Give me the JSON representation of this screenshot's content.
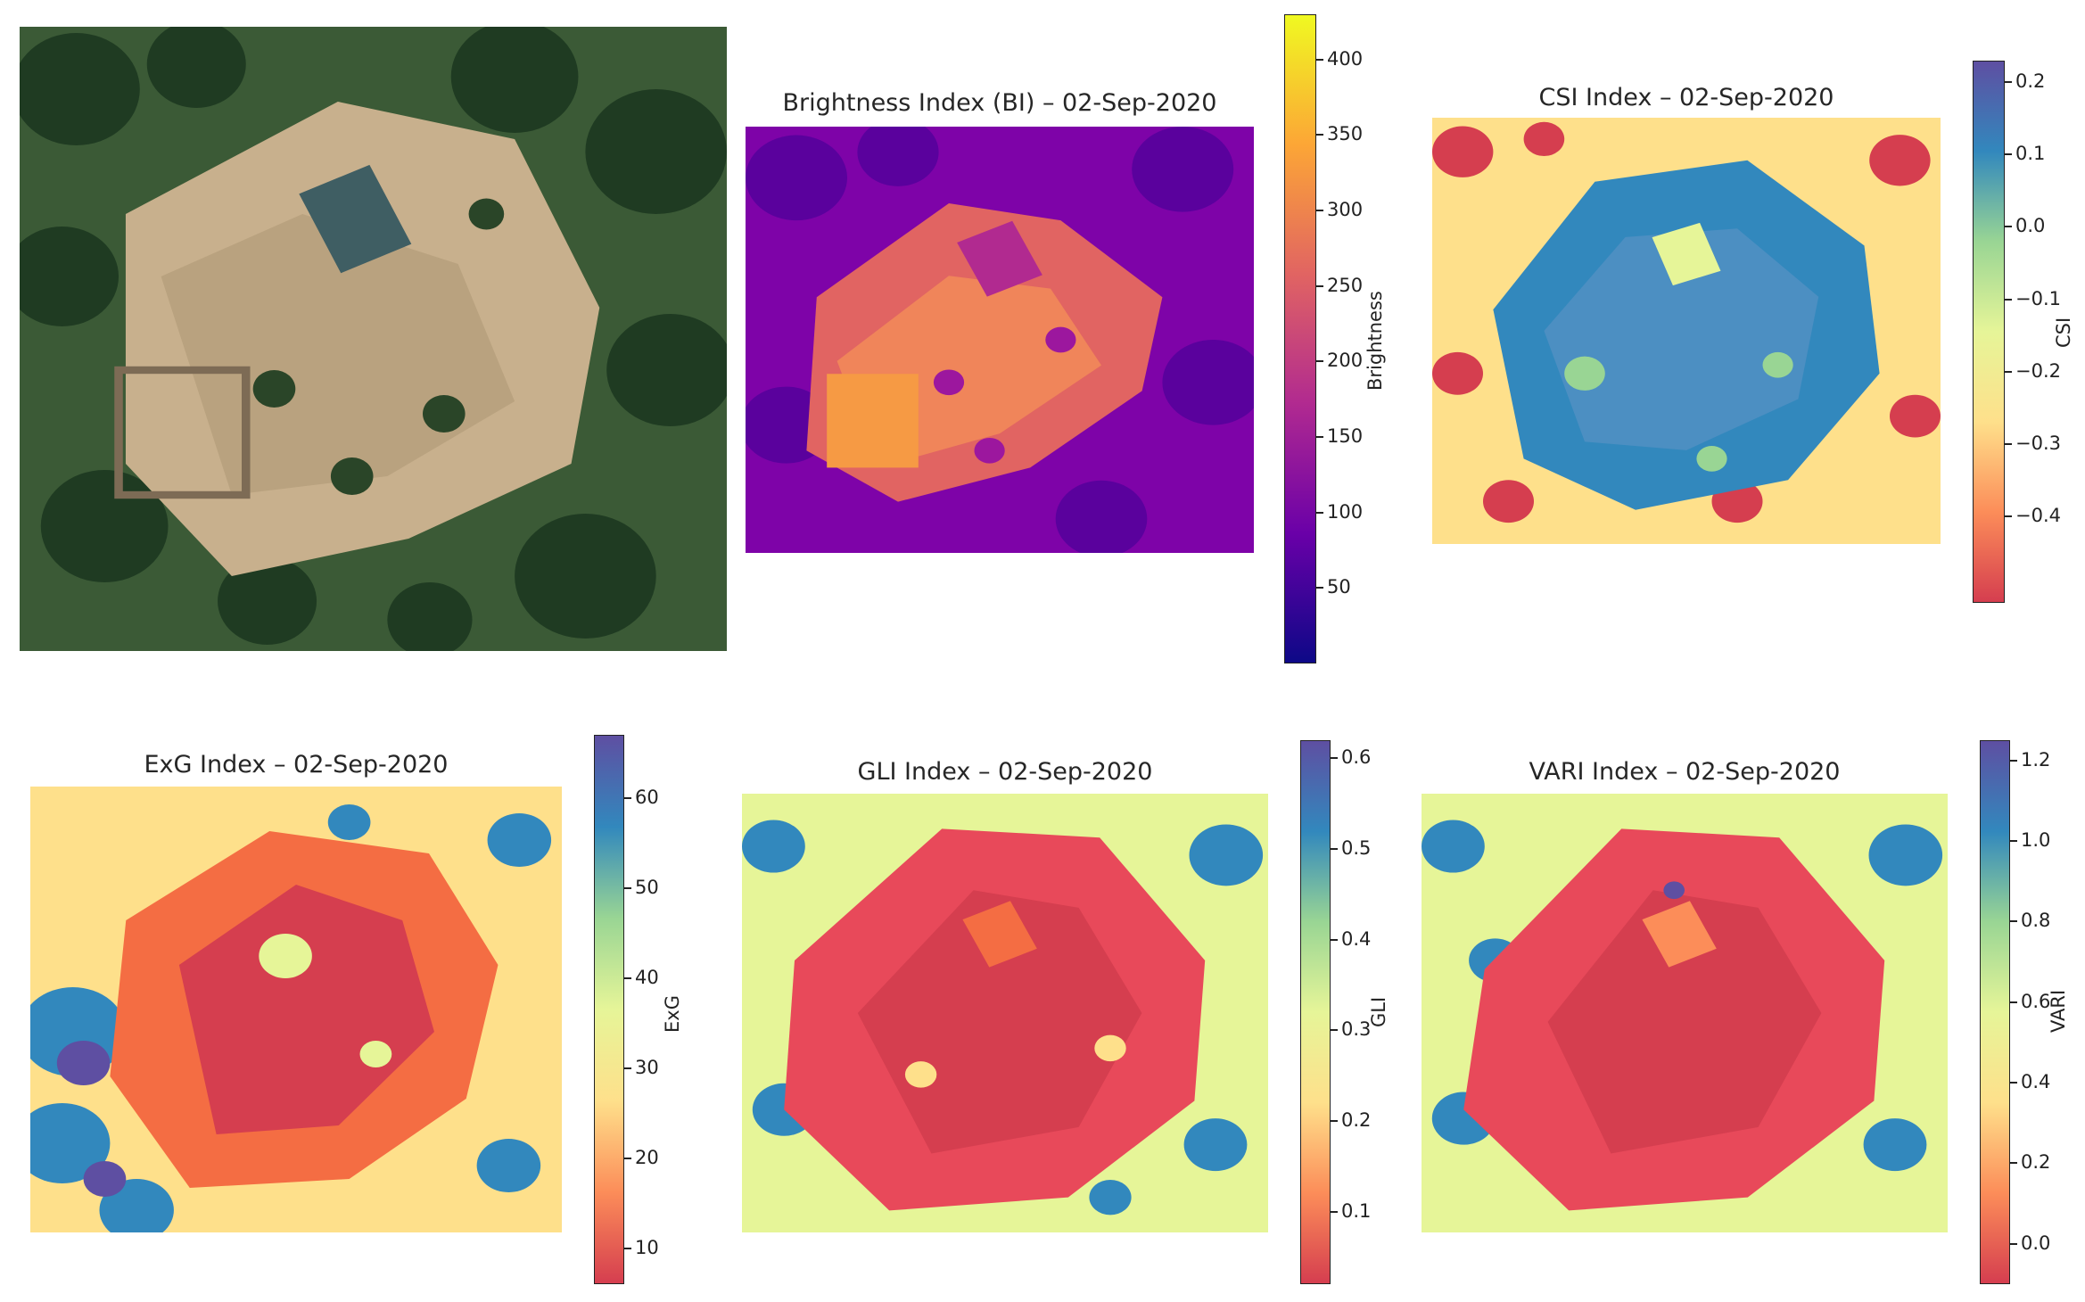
{
  "chart_data": [
    {
      "type": "image",
      "title": "",
      "colors": {
        "bare_soil": "#c9b18f",
        "trees": "#2d4a2b",
        "roof": "#3f5e63"
      }
    },
    {
      "type": "heatmap",
      "title": "Brightness Index (BI) – 02-Sep-2020",
      "colorbar_label": "Brightness",
      "colormap": "plasma",
      "range": [
        0,
        430
      ],
      "ticks": [
        "400",
        "350",
        "300",
        "250",
        "200",
        "150",
        "100",
        "50"
      ],
      "tick_values": [
        400,
        350,
        300,
        250,
        200,
        150,
        100,
        50
      ],
      "colormap_stops": [
        "#0d0887",
        "#6a00a8",
        "#b12a90",
        "#e16462",
        "#fca636",
        "#f0f921"
      ]
    },
    {
      "type": "heatmap",
      "title": "CSI Index – 02-Sep-2020",
      "colorbar_label": "CSI",
      "colormap": "Spectral",
      "range": [
        -0.52,
        0.23
      ],
      "ticks": [
        "0.2",
        "0.1",
        "0.0",
        "−0.1",
        "−0.2",
        "−0.3",
        "−0.4"
      ],
      "tick_values": [
        0.2,
        0.1,
        0.0,
        -0.1,
        -0.2,
        -0.3,
        -0.4
      ],
      "colormap_stops": [
        "#d53e4f",
        "#fc8d59",
        "#fee08b",
        "#e6f598",
        "#99d594",
        "#3288bd",
        "#5e4fa2"
      ]
    },
    {
      "type": "heatmap",
      "title": "ExG Index – 02-Sep-2020",
      "colorbar_label": "ExG",
      "colormap": "Spectral",
      "range": [
        6,
        67
      ],
      "ticks": [
        "60",
        "50",
        "40",
        "30",
        "20",
        "10"
      ],
      "tick_values": [
        60,
        50,
        40,
        30,
        20,
        10
      ],
      "colormap_stops": [
        "#d53e4f",
        "#fc8d59",
        "#fee08b",
        "#e6f598",
        "#99d594",
        "#3288bd",
        "#5e4fa2"
      ]
    },
    {
      "type": "heatmap",
      "title": "GLI Index – 02-Sep-2020",
      "colorbar_label": "GLI",
      "colormap": "Spectral",
      "range": [
        0.02,
        0.62
      ],
      "ticks": [
        "0.6",
        "0.5",
        "0.4",
        "0.3",
        "0.2",
        "0.1"
      ],
      "tick_values": [
        0.6,
        0.5,
        0.4,
        0.3,
        0.2,
        0.1
      ],
      "colormap_stops": [
        "#d53e4f",
        "#fc8d59",
        "#fee08b",
        "#e6f598",
        "#99d594",
        "#3288bd",
        "#5e4fa2"
      ]
    },
    {
      "type": "heatmap",
      "title": "VARI Index – 02-Sep-2020",
      "colorbar_label": "VARI",
      "colormap": "Spectral",
      "range": [
        -0.1,
        1.25
      ],
      "ticks": [
        "1.2",
        "1.0",
        "0.8",
        "0.6",
        "0.4",
        "0.2",
        "0.0"
      ],
      "tick_values": [
        1.2,
        1.0,
        0.8,
        0.6,
        0.4,
        0.2,
        0.0
      ],
      "colormap_stops": [
        "#d53e4f",
        "#fc8d59",
        "#fee08b",
        "#e6f598",
        "#99d594",
        "#3288bd",
        "#5e4fa2"
      ]
    }
  ]
}
